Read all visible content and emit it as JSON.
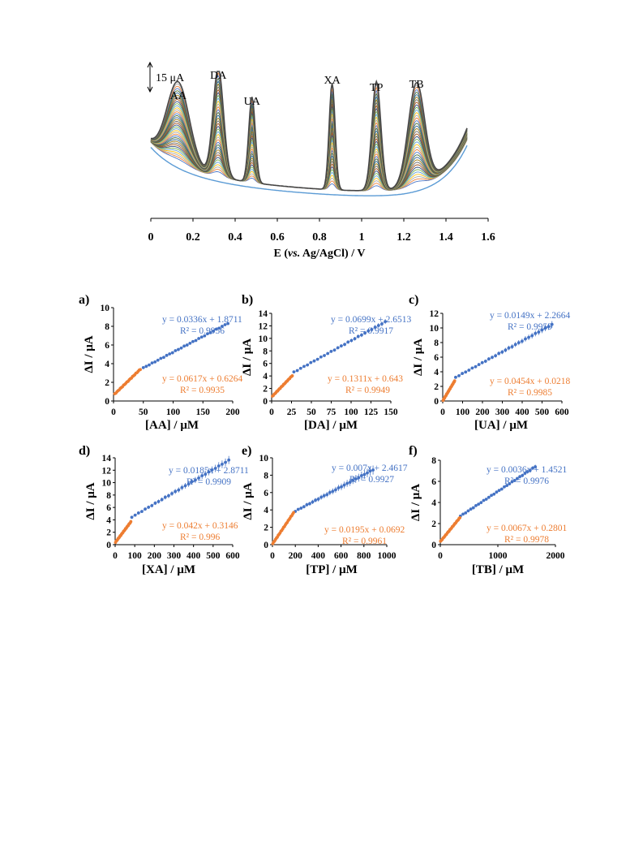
{
  "chart_data": [
    {
      "type": "line",
      "name": "voltammogram",
      "xlabel": "E (vs. Ag/AgCl) / V",
      "xlabel_parts": [
        "E (",
        "vs.",
        " Ag/AgCl) / V"
      ],
      "scale_bar": "15 μA",
      "xlim": [
        0,
        1.6
      ],
      "x_ticks": [
        "0",
        "0.2",
        "0.4",
        "0.6",
        "0.8",
        "1",
        "1.2",
        "1.4",
        "1.6"
      ],
      "peaks": [
        {
          "label": "AA",
          "x": 0.13
        },
        {
          "label": "DA",
          "x": 0.32
        },
        {
          "label": "UA",
          "x": 0.48
        },
        {
          "label": "XA",
          "x": 0.86
        },
        {
          "label": "TP",
          "x": 1.07
        },
        {
          "label": "TB",
          "x": 1.26
        }
      ],
      "series_count": 40,
      "series_colors": [
        "#4472c4",
        "#ed7d31",
        "#a5a5a5",
        "#ffc000",
        "#5b9bd5",
        "#70ad47",
        "#264478",
        "#9e480e",
        "#636363",
        "#997300",
        "#255e91",
        "#43682b"
      ]
    },
    {
      "type": "scatter",
      "panel_label": "a)",
      "xlabel": "[AA] / μM",
      "ylabel": "ΔI / μA",
      "xlim": [
        0,
        200
      ],
      "ylim": [
        0,
        10
      ],
      "x_ticks": [
        "0",
        "50",
        "100",
        "150",
        "200"
      ],
      "y_ticks": [
        "0",
        "2",
        "4",
        "6",
        "8",
        "10"
      ],
      "series": [
        {
          "color": "#4472c4",
          "equation": "y = 0.0336x + 1.8711",
          "r2": "R² = 0.9956",
          "slope": 0.0336,
          "intercept": 1.8711,
          "x_range": [
            50,
            192
          ],
          "n": 30,
          "err": 0.12
        },
        {
          "color": "#ed7d31",
          "equation": "y = 0.0617x + 0.6264",
          "r2": "R² = 0.9935",
          "slope": 0.0617,
          "intercept": 0.6264,
          "x_range": [
            2,
            45
          ],
          "n": 24,
          "err": 0.05
        }
      ]
    },
    {
      "type": "scatter",
      "panel_label": "b)",
      "xlabel": "[DA] / μM",
      "ylabel": "ΔI / μA",
      "xlim": [
        0,
        150
      ],
      "ylim": [
        0,
        14
      ],
      "x_ticks": [
        "0",
        "25",
        "50",
        "75",
        "100",
        "125",
        "150"
      ],
      "y_ticks": [
        "0",
        "2",
        "4",
        "6",
        "8",
        "10",
        "12",
        "14"
      ],
      "series": [
        {
          "color": "#4472c4",
          "equation": "y = 0.0699x + 2.6513",
          "r2": "R² = 0.9917",
          "slope": 0.0699,
          "intercept": 2.6513,
          "x_range": [
            28,
            143
          ],
          "n": 28,
          "err": 0.3
        },
        {
          "color": "#ed7d31",
          "equation": "y = 0.1311x + 0.643",
          "r2": "R² = 0.9949",
          "slope": 0.1311,
          "intercept": 0.643,
          "x_range": [
            1,
            26
          ],
          "n": 24,
          "err": 0.08
        }
      ]
    },
    {
      "type": "scatter",
      "panel_label": "c)",
      "xlabel": "[UA] / μM",
      "ylabel": "ΔI / μA",
      "xlim": [
        0,
        600
      ],
      "ylim": [
        0,
        12
      ],
      "x_ticks": [
        "0",
        "100",
        "200",
        "300",
        "400",
        "500",
        "600"
      ],
      "y_ticks": [
        "0",
        "2",
        "4",
        "6",
        "8",
        "10",
        "12"
      ],
      "series": [
        {
          "color": "#4472c4",
          "equation": "y = 0.0149x + 2.2664",
          "r2": "R² = 0.9959",
          "slope": 0.0149,
          "intercept": 2.2664,
          "x_range": [
            65,
            550
          ],
          "n": 30,
          "err": 0.35
        },
        {
          "color": "#ed7d31",
          "equation": "y = 0.0454x + 0.0218",
          "r2": "R² = 0.9985",
          "slope": 0.0454,
          "intercept": 0.0218,
          "x_range": [
            2,
            60
          ],
          "n": 24,
          "err": 0.05
        }
      ]
    },
    {
      "type": "scatter",
      "panel_label": "d)",
      "xlabel": "[XA] / μM",
      "ylabel": "ΔI / μA",
      "xlim": [
        0,
        600
      ],
      "ylim": [
        0,
        14
      ],
      "x_ticks": [
        "0",
        "100",
        "200",
        "300",
        "400",
        "500",
        "600"
      ],
      "y_ticks": [
        "0",
        "2",
        "4",
        "6",
        "8",
        "10",
        "12",
        "14"
      ],
      "series": [
        {
          "color": "#4472c4",
          "equation": "y = 0.0185x + 2.8711",
          "r2": "R² = 0.9909",
          "slope": 0.0185,
          "intercept": 2.8711,
          "x_range": [
            85,
            580
          ],
          "n": 30,
          "err": 0.5
        },
        {
          "color": "#ed7d31",
          "equation": "y = 0.042x + 0.3146",
          "r2": "R² = 0.996",
          "slope": 0.042,
          "intercept": 0.3146,
          "x_range": [
            2,
            80
          ],
          "n": 24,
          "err": 0.06
        }
      ]
    },
    {
      "type": "scatter",
      "panel_label": "e)",
      "xlabel": "[TP] / μM",
      "ylabel": "ΔI / μA",
      "xlim": [
        0,
        1000
      ],
      "ylim": [
        0,
        10
      ],
      "x_ticks": [
        "0",
        "200",
        "400",
        "600",
        "800",
        "1000"
      ],
      "y_ticks": [
        "0",
        "2",
        "4",
        "6",
        "8",
        "10"
      ],
      "series": [
        {
          "color": "#4472c4",
          "equation": "y = 0.007x + 2.4617",
          "r2": "R² = 0.9927",
          "slope": 0.007,
          "intercept": 2.4617,
          "x_range": [
            200,
            880
          ],
          "n": 28,
          "err": 0.4
        },
        {
          "color": "#ed7d31",
          "equation": "y = 0.0195x + 0.0692",
          "r2": "R² = 0.9961",
          "slope": 0.0195,
          "intercept": 0.0692,
          "x_range": [
            3,
            185
          ],
          "n": 24,
          "err": 0.08
        }
      ]
    },
    {
      "type": "scatter",
      "panel_label": "f)",
      "xlabel": "[TB] / μM",
      "ylabel": "ΔI / μA",
      "xlim": [
        0,
        2000
      ],
      "ylim": [
        0,
        8
      ],
      "x_ticks": [
        "0",
        "1000",
        "2000"
      ],
      "y_ticks": [
        "0",
        "2",
        "4",
        "6",
        "8"
      ],
      "series": [
        {
          "color": "#4472c4",
          "equation": "y = 0.0036x + 1.4521",
          "r2": "R² = 0.9976",
          "slope": 0.0036,
          "intercept": 1.4521,
          "x_range": [
            350,
            1650
          ],
          "n": 30,
          "err": 0.15
        },
        {
          "color": "#ed7d31",
          "equation": "y = 0.0067x + 0.2801",
          "r2": "R² = 0.9978",
          "slope": 0.0067,
          "intercept": 0.2801,
          "x_range": [
            5,
            340
          ],
          "n": 24,
          "err": 0.05
        }
      ]
    }
  ]
}
